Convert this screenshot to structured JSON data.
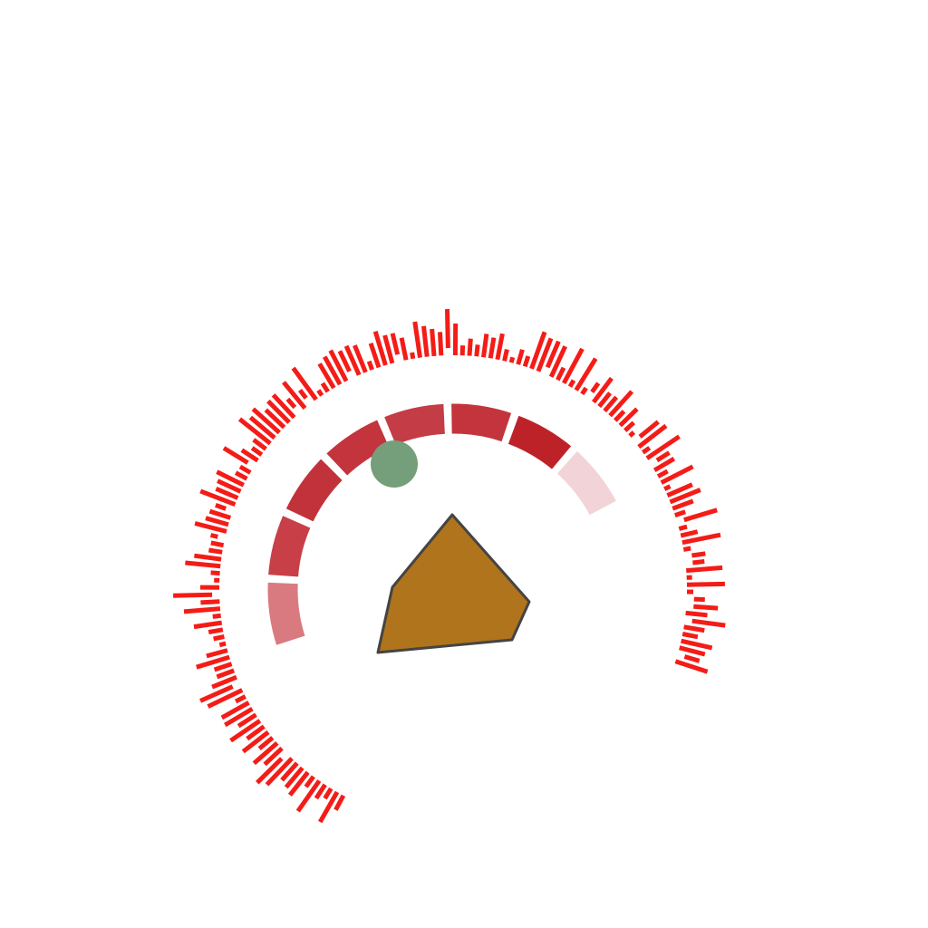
{
  "colors": {
    "background": "#ffffff",
    "ticks": "#f41c17",
    "arc_segments": [
      "#d97a80",
      "#c83f47",
      "#c2323a",
      "#c3343c",
      "#c43c45",
      "#c3343c",
      "#be2229",
      "#f2d4d8"
    ],
    "segment_divider": "#ffffff",
    "marker": "#759e7b",
    "pointer_fill": "#b0741c",
    "pointer_stroke": "#444444"
  },
  "icons": {
    "marker": "circle",
    "pointer": "pentagon"
  }
}
